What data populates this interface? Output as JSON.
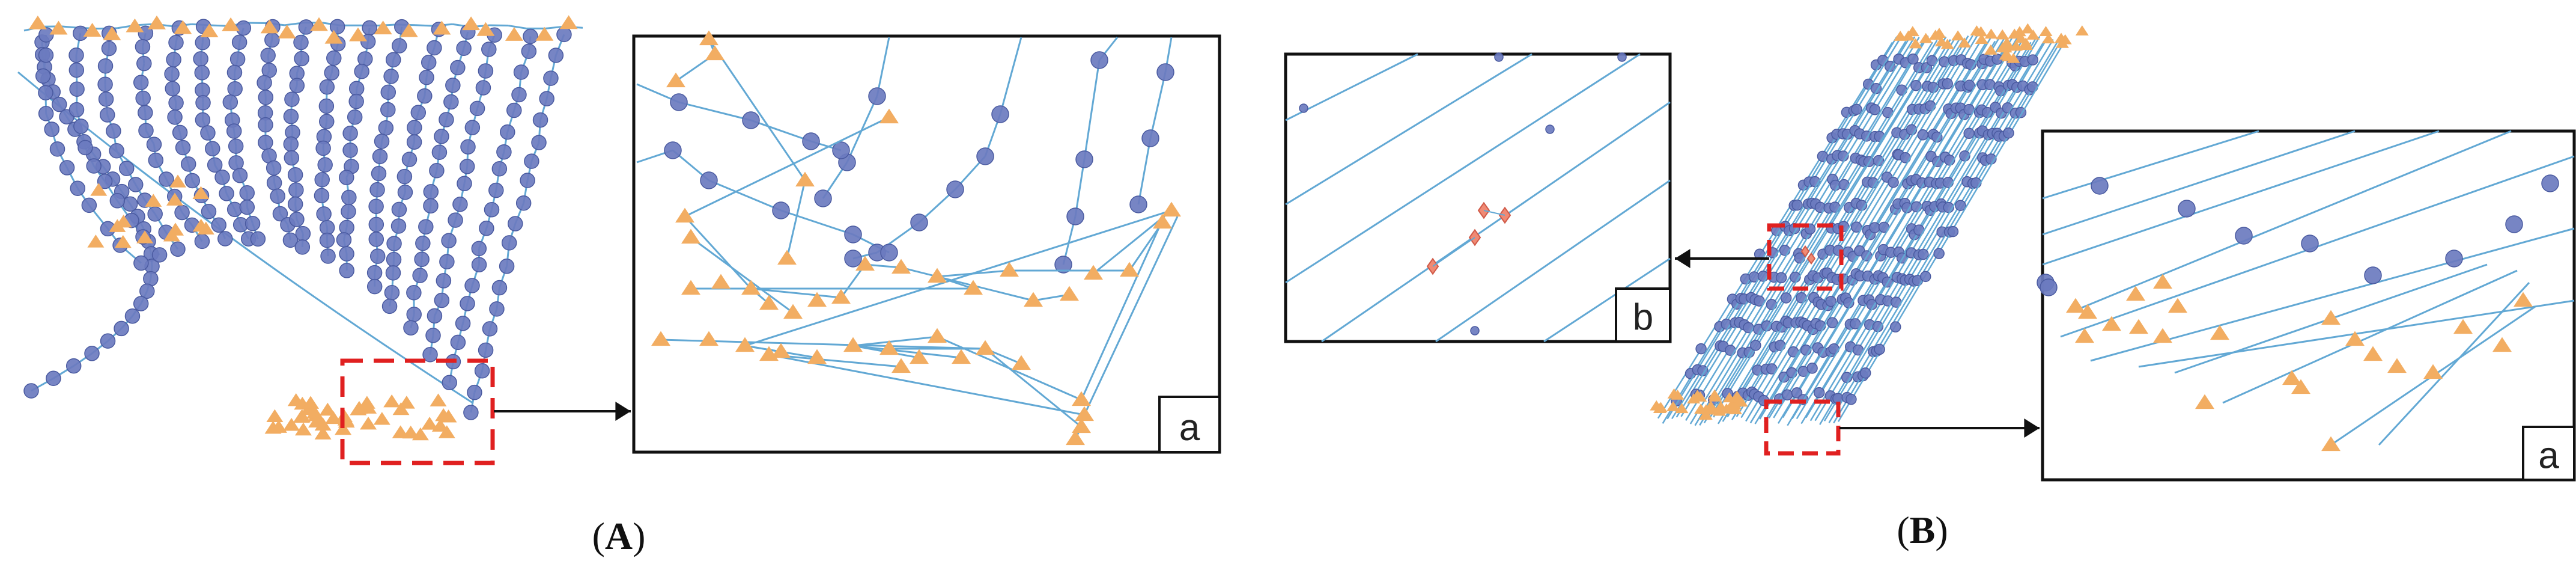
{
  "panels": [
    {
      "paren_open": "(",
      "letter": "A",
      "paren_close": ")",
      "inset_labels": [
        "a"
      ]
    },
    {
      "paren_open": "(",
      "letter": "B",
      "paren_close": ")",
      "inset_labels": [
        "b",
        "a"
      ]
    }
  ],
  "legend_colors": {
    "node_circle": "#6b7bbf",
    "node_circle_stroke": "#4a5aa0",
    "node_triangle": "#f2ad62",
    "edge": "#62a8d4",
    "highlight_box": "#e02020",
    "outlier_diamond": "#f08a74",
    "frame": "#111111"
  },
  "icons": {
    "regular_point": "circle-marker-icon",
    "boundary_point": "triangle-marker-icon",
    "outlier_point": "diamond-marker-icon",
    "zoom_arrow": "arrow-right-icon"
  }
}
